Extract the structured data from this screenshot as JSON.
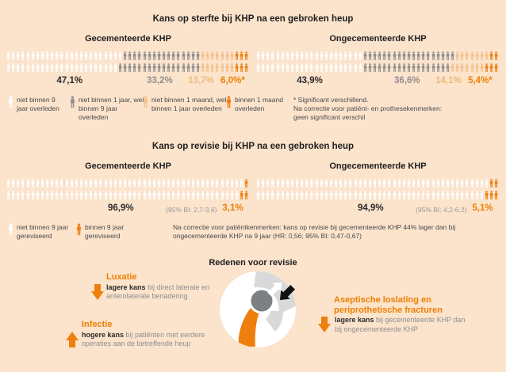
{
  "palettes": {
    "mortality": [
      "#ffffff",
      "#8f8f8f",
      "#f4c08a",
      "#ee7f0d"
    ],
    "revision": [
      "#ffffff",
      "#ee7f0d"
    ]
  },
  "mortality": {
    "title": "Kans op sterfte bij KHP na een gebroken heup",
    "groups": [
      {
        "label": "Gecementeerde KHP",
        "rows": [
          [
            24,
            16,
            7,
            3
          ],
          [
            23,
            17,
            7,
            3
          ]
        ],
        "pcts": [
          "47,1%",
          "33,2%",
          "13,7%",
          "6,0%*"
        ]
      },
      {
        "label": "Ongecementeerde KHP",
        "rows": [
          [
            22,
            19,
            7,
            2
          ],
          [
            22,
            18,
            7,
            3
          ]
        ],
        "pcts": [
          "43,9%",
          "36,6%",
          "14,1%",
          "5,4%*"
        ]
      }
    ],
    "legend": [
      {
        "text": "niet binnen 9 jaar overleden"
      },
      {
        "text": "niet binnen 1 jaar, wel binnen 9 jaar overleden"
      },
      {
        "text": "niet binnen 1 maand, wel binnen 1 jaar overleden"
      },
      {
        "text": "binnen 1 maand overleden"
      }
    ],
    "note": "* Significant verschillend.\nNa correctie voor patiënt- en prothesekenmerken:\ngeen significant verschil"
  },
  "revision": {
    "title": "Kans op revisie bij KHP na een gebroken heup",
    "groups": [
      {
        "label": "Gecementeerde KHP",
        "rows": [
          [
            49,
            1
          ],
          [
            48,
            2
          ]
        ],
        "pct_main": "96,9%",
        "pct_ci": "(95% BI: 2,7-3,6)",
        "pct_rev": "3,1%"
      },
      {
        "label": "Ongecementeerde KHP",
        "rows": [
          [
            48,
            2
          ],
          [
            47,
            3
          ]
        ],
        "pct_main": "94,9%",
        "pct_ci": "(95% BI: 4,2-6,2)",
        "pct_rev": "5,1%"
      }
    ],
    "legend": [
      {
        "text": "niet binnen 9 jaar gereviseerd"
      },
      {
        "text": "binnen 9 jaar gereviseerd"
      }
    ],
    "note": "Na correctie voor patiëntkenmerken: kans op revisie bij gecementeerde KHP 44% lager dan bij\nongecementeerde KHP na 9 jaar (HR: 0,56; 95% BI: 0,47-0,67)"
  },
  "reasons": {
    "title": "Redenen voor revisie",
    "items": [
      {
        "heading": "Luxatie",
        "bold": "lagere kans",
        "rest": " bij direct laterale en anterolaterale benadering",
        "direction": "down"
      },
      {
        "heading": "Infectie",
        "bold": "hogere kans",
        "rest": " bij patiënten met eerdere operaties aan de betreffende heup",
        "direction": "up"
      },
      {
        "heading": "Aseptische loslating en periprothetische fracturen",
        "bold": "lagere kans",
        "rest": " bij gecementeerde KHP dan bij ongecementeerde KHP",
        "direction": "down"
      }
    ]
  },
  "chart_data": [
    {
      "type": "bar",
      "subtype": "pictogram-100-persons",
      "title": "Kans op sterfte bij KHP na een gebroken heup",
      "categories": [
        "niet binnen 9 jaar overleden",
        "niet binnen 1 jaar, wel binnen 9 jaar overleden",
        "niet binnen 1 maand, wel binnen 1 jaar overleden",
        "binnen 1 maand overleden"
      ],
      "series": [
        {
          "name": "Gecementeerde KHP",
          "values": [
            47.1,
            33.2,
            13.7,
            6.0
          ]
        },
        {
          "name": "Ongecementeerde KHP",
          "values": [
            43.9,
            36.6,
            14.1,
            5.4
          ]
        }
      ],
      "unit": "%",
      "annotation": "* Significant verschillend. Na correctie voor patiënt- en prothesekenmerken: geen significant verschil"
    },
    {
      "type": "bar",
      "subtype": "pictogram-100-persons",
      "title": "Kans op revisie bij KHP na een gebroken heup",
      "categories": [
        "niet binnen 9 jaar gereviseerd",
        "binnen 9 jaar gereviseerd"
      ],
      "series": [
        {
          "name": "Gecementeerde KHP",
          "values": [
            96.9,
            3.1
          ],
          "ci_revisie": "(95% BI: 2,7-3,6)"
        },
        {
          "name": "Ongecementeerde KHP",
          "values": [
            94.9,
            5.1
          ],
          "ci_revisie": "(95% BI: 4,2-6,2)"
        }
      ],
      "unit": "%",
      "annotation": "Na correctie voor patiëntkenmerken: kans op revisie bij gecementeerde KHP 44% lager dan bij ongecementeerde KHP na 9 jaar (HR: 0,56; 95% BI: 0,47-0,67)"
    }
  ]
}
